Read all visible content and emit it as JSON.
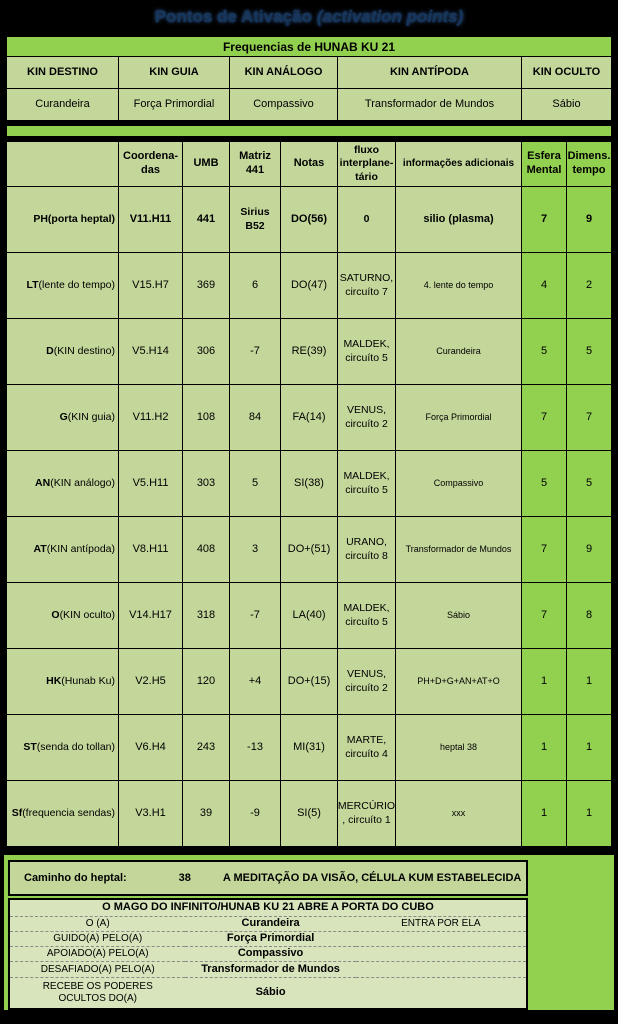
{
  "title": {
    "main": "Pontos de Ativação",
    "italic": "(activation points)"
  },
  "colors": {
    "accent_green": "#92D050",
    "cell_green": "#C4D79B",
    "light_green": "#D8E4BC",
    "title_navy": "#16365C",
    "background": "#000000"
  },
  "table1": {
    "title": "Frequencias de HUNAB KU 21",
    "headers": [
      "KIN DESTINO",
      "KIN GUIA",
      "KIN ANÁLOGO",
      "KIN ANTÍPODA",
      "KIN OCULTO"
    ],
    "values": [
      "Curandeira",
      "Força Primordial",
      "Compassivo",
      "Transformador de Mundos",
      "Sábio"
    ]
  },
  "table2": {
    "headers": [
      "",
      "Coordena-\ndas",
      "UMB",
      "Matriz\n441",
      "Notas",
      "fluxo\ninterplane-\ntário",
      "informações adicionais",
      "Esfera\nMental",
      "Dimens.\ntempo"
    ],
    "rows": [
      {
        "prefix": "PH",
        "label": " (porta heptal)",
        "coord": "V11.H11",
        "umb": "441",
        "matriz": "Sirius B52",
        "notas": "DO(56)",
        "fluxo": "0",
        "info": "silio  (plasma)",
        "esfera": "7",
        "dimens": "9"
      },
      {
        "prefix": "LT",
        "label": " (lente do tempo)",
        "coord": "V15.H7",
        "umb": "369",
        "matriz": "6",
        "notas": "DO(47)",
        "fluxo": "SATURNO,\ncircuíto 7",
        "info": "4. lente do tempo",
        "esfera": "4",
        "dimens": "2"
      },
      {
        "prefix": "D",
        "label": " (KIN destino)",
        "coord": "V5.H14",
        "umb": "306",
        "matriz": "-7",
        "notas": "RE(39)",
        "fluxo": "MALDEK,\ncircuíto 5",
        "info": "Curandeira",
        "esfera": "5",
        "dimens": "5"
      },
      {
        "prefix": "G",
        "label": " (KIN guia)",
        "coord": "V11.H2",
        "umb": "108",
        "matriz": "84",
        "notas": "FA(14)",
        "fluxo": "VENUS,\ncircuíto 2",
        "info": "Força Primordial",
        "esfera": "7",
        "dimens": "7"
      },
      {
        "prefix": "AN",
        "label": " (KIN análogo)",
        "coord": "V5.H11",
        "umb": "303",
        "matriz": "5",
        "notas": "SI(38)",
        "fluxo": "MALDEK,\ncircuíto 5",
        "info": "Compassivo",
        "esfera": "5",
        "dimens": "5"
      },
      {
        "prefix": "AT",
        "label": " (KIN antípoda)",
        "coord": "V8.H11",
        "umb": "408",
        "matriz": "3",
        "notas": "DO+(51)",
        "fluxo": "URANO,\ncircuíto 8",
        "info": "Transformador de Mundos",
        "esfera": "7",
        "dimens": "9"
      },
      {
        "prefix": "O",
        "label": " (KIN oculto)",
        "coord": "V14.H17",
        "umb": "318",
        "matriz": "-7",
        "notas": "LA(40)",
        "fluxo": "MALDEK,\ncircuíto 5",
        "info": "Sábio",
        "esfera": "7",
        "dimens": "8"
      },
      {
        "prefix": "HK",
        "label": " (Hunab Ku)",
        "coord": "V2.H5",
        "umb": "120",
        "matriz": "+4",
        "notas": "DO+(15)",
        "fluxo": "VENUS,\ncircuíto 2",
        "info": "PH+D+G+AN+AT+O",
        "esfera": "1",
        "dimens": "1"
      },
      {
        "prefix": "ST",
        "label": " (senda do tollan)",
        "coord": "V6.H4",
        "umb": "243",
        "matriz": "-13",
        "notas": "MI(31)",
        "fluxo": "MARTE,\ncircuíto 4",
        "info": "heptal 38",
        "esfera": "1",
        "dimens": "1"
      },
      {
        "prefix": "Sf",
        "label": " (frequencia sendas)",
        "coord": "V3.H1",
        "umb": "39",
        "matriz": "-9",
        "notas": "SI(5)",
        "fluxo": "MERCÚRIO\n, circuíto 1",
        "info": "xxx",
        "esfera": "1",
        "dimens": "1"
      }
    ]
  },
  "footer": {
    "caminho_label": "Caminho do heptal:",
    "caminho_num": "38",
    "caminho_text": "A MEDITAÇÃO DA VISÃO, CÉLULA KUM ESTABELECIDA",
    "mago_title": "O MAGO DO INFINITO/HUNAB KU 21 ABRE A PORTA DO CUBO",
    "rows": [
      {
        "label": "O (A)",
        "value": "Curandeira",
        "extra": "ENTRA POR ELA"
      },
      {
        "label": "GUIDO(A) PELO(A)",
        "value": "Força Primordial",
        "extra": ""
      },
      {
        "label": "APOIADO(A) PELO(A)",
        "value": "Compassivo",
        "extra": ""
      },
      {
        "label": "DESAFIADO(A) PELO(A)",
        "value": "Transformador de Mundos",
        "extra": ""
      },
      {
        "label": "RECEBE OS PODERES\nOCULTOS DO(A)",
        "value": "Sábio",
        "extra": ""
      }
    ]
  }
}
